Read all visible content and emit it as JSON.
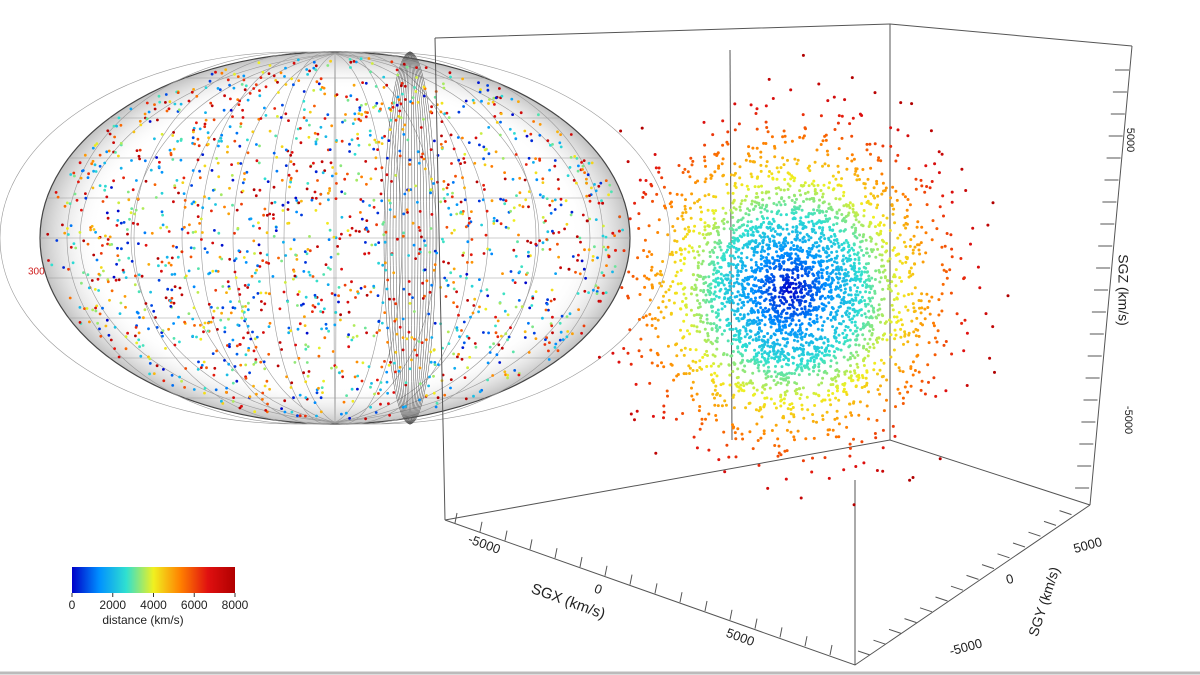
{
  "sky_map": {
    "label": "300"
  },
  "cube": {
    "x_label": "SGX (km/s)",
    "x_ticks": [
      -5000,
      0,
      5000
    ],
    "y_label": "SGY (km/s)",
    "y_ticks": [
      5000,
      0,
      -5000
    ],
    "z_label": "SGZ (km/s)",
    "z_ticks": [
      5000,
      -5000
    ]
  },
  "colorbar": {
    "ticks": [
      0,
      2000,
      4000,
      6000,
      8000
    ],
    "label": "distance (km/s)",
    "colors": [
      "#0000c8",
      "#0090ff",
      "#30e0d0",
      "#f0f020",
      "#ff8000",
      "#e01010",
      "#b00000"
    ]
  }
}
